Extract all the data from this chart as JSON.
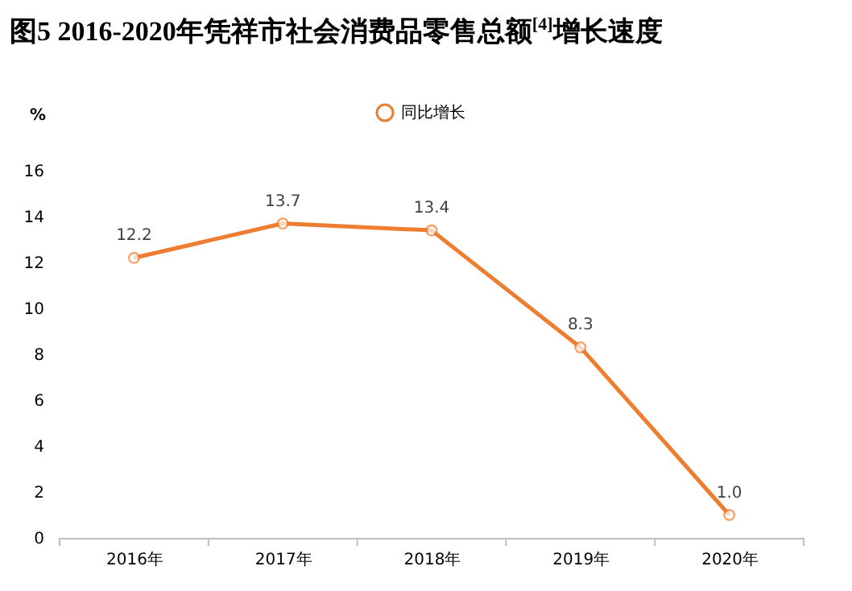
{
  "chart_data": {
    "type": "line",
    "title": "图5 2016-2020年凭祥市社会消费品零售总额$^{[4]}$增长速度",
    "ylabel": "%",
    "categories": [
      "2016年",
      "2017年",
      "2018年",
      "2019年",
      "2020年"
    ],
    "series": [
      {
        "name": "同比增长",
        "color": "#ed7d31",
        "values": [
          12.2,
          13.7,
          13.4,
          8.3,
          1.0
        ],
        "value_labels": [
          "12.2",
          "13.7",
          "13.4",
          "8.3",
          "1.0"
        ]
      }
    ],
    "ylim": [
      0,
      16
    ],
    "yticks": [
      0,
      2,
      4,
      6,
      8,
      10,
      12,
      14,
      16
    ],
    "grid": false,
    "legend": "top",
    "marker": "circle",
    "line_style": "solid"
  }
}
